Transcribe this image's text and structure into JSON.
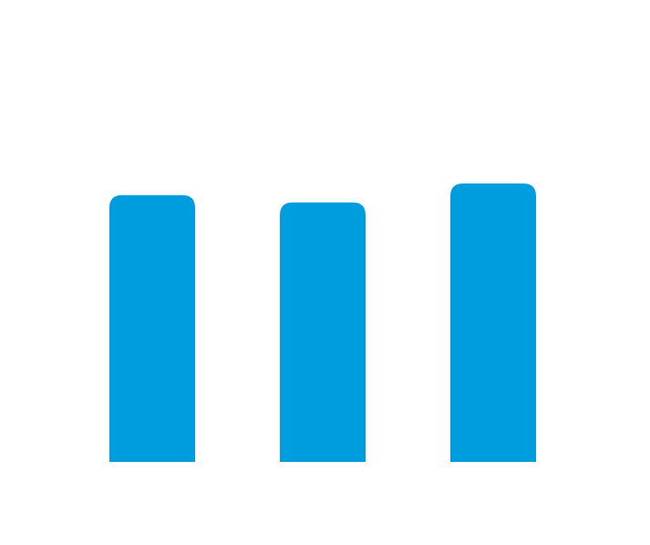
{
  "chart_data": {
    "type": "bar",
    "values": [
      0.958,
      0.932,
      1.0
    ],
    "color": "#009DDE",
    "grid": false,
    "legend": "none",
    "ylim": [
      0,
      1.0
    ]
  }
}
